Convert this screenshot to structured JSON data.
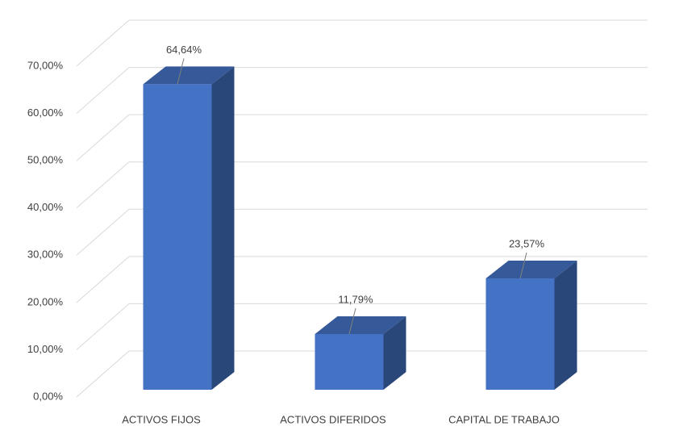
{
  "chart_data": {
    "type": "bar3d",
    "categories": [
      "ACTIVOS FIJOS",
      "ACTIVOS DIFERIDOS",
      "CAPITAL DE TRABAJO"
    ],
    "values": [
      64.64,
      11.79,
      23.57
    ],
    "value_labels": [
      "64,64%",
      "11,79%",
      "23,57%"
    ],
    "color": "#4472c4",
    "ylim": [
      0,
      70
    ],
    "yticks": [
      {
        "value": 0,
        "label": "0,00%"
      },
      {
        "value": 10,
        "label": "10,00%"
      },
      {
        "value": 20,
        "label": "20,00%"
      },
      {
        "value": 30,
        "label": "30,00%"
      },
      {
        "value": 40,
        "label": "40,00%"
      },
      {
        "value": 50,
        "label": "50,00%"
      },
      {
        "value": 60,
        "label": "60,00%"
      },
      {
        "value": 70,
        "label": "70,00%"
      }
    ],
    "grid": true
  }
}
